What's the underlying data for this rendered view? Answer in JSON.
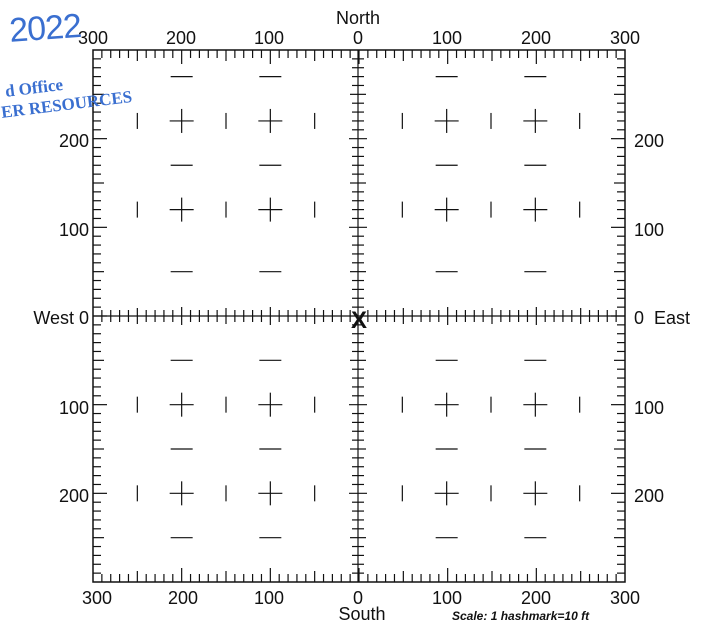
{
  "stamp": {
    "year": "2022",
    "line1": "d Office",
    "line2": "ER RESOURCES"
  },
  "compass": {
    "north": "North",
    "south": "South",
    "west": "West",
    "east": "East"
  },
  "scale_label": "Scale:  1 hashmark=10 ft",
  "axes": {
    "top_ticks": [
      "300",
      "200",
      "100",
      "0",
      "100",
      "200",
      "300"
    ],
    "bottom_ticks": [
      "300",
      "200",
      "100",
      "0",
      "100",
      "200",
      "300"
    ],
    "left_ticks": [
      "200",
      "100",
      "West 0",
      "100",
      "200"
    ],
    "right_ticks": [
      "200",
      "100",
      "0  East",
      "100",
      "200"
    ]
  },
  "center_marker": "X"
}
